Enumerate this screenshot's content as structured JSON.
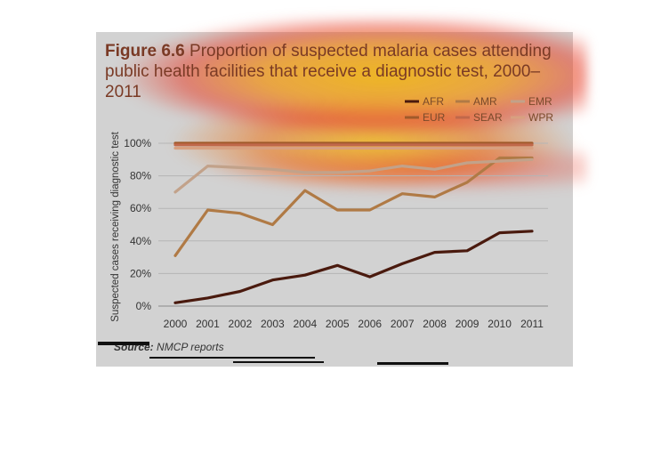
{
  "figure": {
    "label": "Figure 6.6",
    "title": "Proportion of suspected malaria cases attending public health facilities that receive a diagnostic test, 2000–2011"
  },
  "source": {
    "label": "Source:",
    "text": "NMCP reports"
  },
  "colors": {
    "panel": "#d2d2d2",
    "grid": "#b5b5b5",
    "axis_text": "#333333",
    "title": "#7a3a25"
  },
  "chart_data": {
    "type": "line",
    "x": [
      2000,
      2001,
      2002,
      2003,
      2004,
      2005,
      2006,
      2007,
      2008,
      2009,
      2010,
      2011
    ],
    "ylabel": "Suspected cases receiving diagnostic test",
    "ylim": [
      0,
      100
    ],
    "yticks": [
      "0%",
      "20%",
      "40%",
      "60%",
      "80%",
      "100%"
    ],
    "grid": true,
    "legend_position": "top-right",
    "series": [
      {
        "name": "AFR",
        "color": "#4a1a0e",
        "values": [
          2,
          5,
          9,
          16,
          19,
          25,
          18,
          26,
          33,
          34,
          45,
          46
        ]
      },
      {
        "name": "AMR",
        "color": "#b07a45",
        "values": [
          31,
          59,
          57,
          50,
          71,
          59,
          59,
          69,
          67,
          76,
          91,
          91
        ]
      },
      {
        "name": "EMR",
        "color": "#c2a28a",
        "values": [
          70,
          86,
          85,
          84,
          82,
          82,
          83,
          86,
          84,
          88,
          89,
          90
        ]
      },
      {
        "name": "EUR",
        "color": "#a05a2a",
        "values": [
          100,
          100,
          100,
          100,
          100,
          100,
          100,
          100,
          100,
          100,
          100,
          100
        ]
      },
      {
        "name": "SEAR",
        "color": "#c0684a",
        "values": [
          99,
          99,
          99,
          99,
          99,
          99,
          99,
          99,
          99,
          99,
          99,
          99
        ]
      },
      {
        "name": "WPR",
        "color": "#d8a080",
        "values": [
          97,
          97,
          97,
          97,
          97,
          97,
          97,
          97,
          97,
          97,
          97,
          97
        ]
      }
    ]
  }
}
